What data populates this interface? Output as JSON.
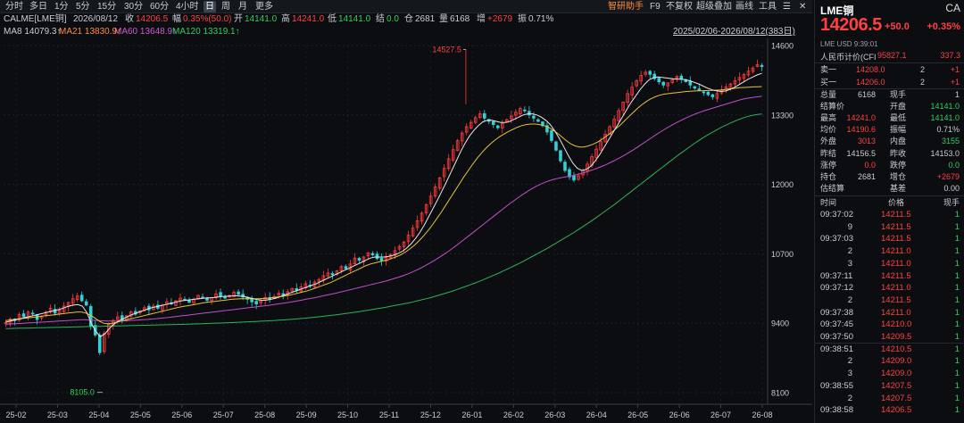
{
  "toolbar": {
    "left_items": [
      "分时",
      "多日",
      "1分",
      "5分",
      "15分",
      "30分",
      "60分",
      "4小时",
      "日",
      "周",
      "月",
      "更多"
    ],
    "active": "日",
    "right_items": [
      "智研助手",
      "F9",
      "不复权",
      "超级叠加",
      "画线",
      "工具"
    ]
  },
  "info": {
    "symbol": "CALME[LME铜]",
    "date": "2026/08/12",
    "close_label": "收",
    "close": "14206.5",
    "amp_label": "幅",
    "amp": "0.35%(50.0)",
    "open_label": "开",
    "open": "14141.0",
    "high_label": "高",
    "high": "14241.0",
    "low_label": "低",
    "low": "14141.0",
    "settle_label": "结",
    "settle": "0.0",
    "oi_label": "仓",
    "oi": "2681",
    "vol_label": "量",
    "vol": "6168",
    "inc_label": "增",
    "inc": "+2679",
    "swing_label": "振",
    "swing": "0.71%",
    "ma8": "MA8 14079.3↑",
    "ma21": "MA21 13830.9↑",
    "ma60": "MA60 13648.9↑",
    "ma120": "MA120 13319.1↑",
    "range": "2025/02/06-2026/08/12(383日)"
  },
  "chart_data": {
    "type": "candlestick",
    "y_ticks": [
      14600,
      13300,
      12000,
      10700,
      9400,
      8100
    ],
    "ylim": [
      8100,
      14600
    ],
    "x_ticks": [
      "25-02",
      "25-03",
      "25-04",
      "25-05",
      "25-06",
      "25-07",
      "25-08",
      "25-09",
      "25-10",
      "25-11",
      "25-12",
      "26-01",
      "26-02",
      "26-03",
      "26-04",
      "26-05",
      "26-06",
      "26-07",
      "26-08"
    ],
    "annotations": [
      {
        "text": "14527.5",
        "value": 14527.5,
        "x_label": "26-01"
      },
      {
        "text": "8105.0",
        "value": 8105.0,
        "x_label": "25-04"
      }
    ],
    "closes": [
      9410,
      9480,
      9450,
      9560,
      9520,
      9610,
      9580,
      9470,
      9530,
      9610,
      9680,
      9590,
      9640,
      9720,
      9790,
      9860,
      9910,
      9820,
      9740,
      9350,
      9180,
      8850,
      9210,
      9380,
      9450,
      9520,
      9460,
      9540,
      9610,
      9570,
      9630,
      9690,
      9650,
      9720,
      9680,
      9740,
      9800,
      9760,
      9820,
      9870,
      9840,
      9790,
      9850,
      9920,
      9880,
      9830,
      9880,
      9950,
      9910,
      9870,
      9920,
      9980,
      9940,
      9890,
      9850,
      9800,
      9760,
      9820,
      9880,
      9850,
      9900,
      9960,
      9930,
      9990,
      10050,
      10020,
      10080,
      10140,
      10110,
      10170,
      10220,
      10290,
      10340,
      10310,
      10380,
      10460,
      10420,
      10510,
      10620,
      10580,
      10640,
      10720,
      10680,
      10610,
      10570,
      10630,
      10690,
      10760,
      10840,
      10920,
      11050,
      11180,
      11320,
      11460,
      11620,
      11780,
      11950,
      12120,
      12300,
      12480,
      12650,
      12820,
      12960,
      13080,
      13160,
      13250,
      13320,
      13240,
      13180,
      13120,
      13060,
      13140,
      13210,
      13280,
      13350,
      13420,
      13380,
      13300,
      13240,
      13180,
      13100,
      12980,
      12820,
      12640,
      12440,
      12260,
      12140,
      12080,
      12160,
      12260,
      12380,
      12520,
      12660,
      12800,
      12940,
      13080,
      13220,
      13380,
      13540,
      13700,
      13820,
      13940,
      14040,
      14100,
      14060,
      13980,
      13920,
      13860,
      13900,
      13960,
      14020,
      13980,
      13920,
      13860,
      13800,
      13760,
      13720,
      13680,
      13640,
      13700,
      13760,
      13820,
      13880,
      13940,
      14000,
      14060,
      14120,
      14180,
      14240,
      14206.5
    ],
    "ma8": [
      9420,
      9440,
      9460,
      9480,
      9500,
      9520,
      9540,
      9560,
      9580,
      9600,
      9620,
      9640,
      9660,
      9690,
      9720,
      9740,
      9750,
      9720,
      9600,
      9400,
      9250,
      9150,
      9200,
      9300,
      9380,
      9440,
      9480,
      9520,
      9560,
      9590,
      9620,
      9650,
      9680,
      9700,
      9720,
      9740,
      9760,
      9780,
      9800,
      9820,
      9830,
      9840,
      9850,
      9860,
      9870,
      9875,
      9880,
      9890,
      9900,
      9905,
      9910,
      9915,
      9910,
      9900,
      9880,
      9860,
      9840,
      9830,
      9835,
      9850,
      9870,
      9900,
      9930,
      9960,
      9990,
      10020,
      10050,
      10080,
      10110,
      10140,
      10180,
      10220,
      10260,
      10300,
      10340,
      10380,
      10420,
      10460,
      10500,
      10540,
      10580,
      10620,
      10640,
      10640,
      10640,
      10650,
      10670,
      10700,
      10740,
      10800,
      10880,
      10980,
      11100,
      11240,
      11400,
      11560,
      11720,
      11890,
      12060,
      12240,
      12420,
      12600,
      12760,
      12900,
      13010,
      13100,
      13170,
      13200,
      13200,
      13180,
      13160,
      13160,
      13180,
      13220,
      13260,
      13300,
      13320,
      13320,
      13300,
      13260,
      13200,
      13120,
      13000,
      12860,
      12700,
      12540,
      12400,
      12300,
      12260,
      12280,
      12340,
      12440,
      12560,
      12700,
      12840,
      12980,
      13120,
      13260,
      13400,
      13540,
      13660,
      13780,
      13880,
      13960,
      14000,
      14010,
      14000,
      13990,
      13980,
      13970,
      13970,
      13960,
      13940,
      13910,
      13880,
      13840,
      13800,
      13770,
      13750,
      13740,
      13750,
      13780,
      13820,
      13870,
      13920,
      13970,
      14010,
      14050,
      14079.3
    ],
    "ma21": [
      9450,
      9460,
      9470,
      9480,
      9490,
      9500,
      9510,
      9520,
      9530,
      9540,
      9550,
      9560,
      9570,
      9580,
      9590,
      9600,
      9610,
      9610,
      9590,
      9550,
      9500,
      9440,
      9400,
      9390,
      9400,
      9420,
      9440,
      9460,
      9480,
      9500,
      9520,
      9540,
      9560,
      9580,
      9600,
      9620,
      9640,
      9660,
      9680,
      9700,
      9715,
      9730,
      9745,
      9760,
      9775,
      9790,
      9800,
      9810,
      9820,
      9830,
      9840,
      9850,
      9855,
      9860,
      9860,
      9860,
      9860,
      9860,
      9865,
      9870,
      9880,
      9890,
      9900,
      9915,
      9930,
      9950,
      9970,
      9990,
      10010,
      10040,
      10070,
      10100,
      10130,
      10160,
      10200,
      10240,
      10280,
      10320,
      10360,
      10400,
      10440,
      10480,
      10510,
      10530,
      10550,
      10570,
      10590,
      10620,
      10650,
      10690,
      10740,
      10800,
      10870,
      10950,
      11040,
      11140,
      11250,
      11370,
      11490,
      11620,
      11750,
      11880,
      12010,
      12140,
      12260,
      12380,
      12490,
      12590,
      12680,
      12760,
      12830,
      12890,
      12940,
      12990,
      13030,
      13070,
      13100,
      13120,
      13130,
      13130,
      13120,
      13100,
      13070,
      13020,
      12960,
      12890,
      12820,
      12760,
      12720,
      12700,
      12700,
      12720,
      12750,
      12790,
      12840,
      12900,
      12960,
      13030,
      13100,
      13180,
      13260,
      13340,
      13420,
      13490,
      13550,
      13600,
      13640,
      13670,
      13690,
      13700,
      13710,
      13720,
      13730,
      13740,
      13745,
      13750,
      13752,
      13755,
      13758,
      13760,
      13765,
      13770,
      13780,
      13790,
      13800,
      13810,
      13815,
      13820,
      13825,
      13828,
      13830.9
    ],
    "ma60": [
      9380,
      9385,
      9390,
      9395,
      9400,
      9405,
      9410,
      9415,
      9420,
      9425,
      9430,
      9435,
      9440,
      9445,
      9450,
      9455,
      9460,
      9465,
      9465,
      9460,
      9455,
      9450,
      9445,
      9442,
      9440,
      9440,
      9442,
      9445,
      9450,
      9455,
      9460,
      9465,
      9470,
      9478,
      9486,
      9494,
      9502,
      9510,
      9520,
      9530,
      9540,
      9550,
      9560,
      9570,
      9580,
      9590,
      9600,
      9610,
      9620,
      9630,
      9640,
      9650,
      9660,
      9670,
      9680,
      9690,
      9700,
      9710,
      9720,
      9730,
      9742,
      9754,
      9766,
      9778,
      9790,
      9805,
      9820,
      9835,
      9850,
      9865,
      9880,
      9898,
      9916,
      9934,
      9952,
      9970,
      9990,
      10010,
      10030,
      10050,
      10070,
      10090,
      10110,
      10130,
      10150,
      10170,
      10190,
      10215,
      10240,
      10265,
      10295,
      10325,
      10360,
      10400,
      10440,
      10485,
      10530,
      10580,
      10630,
      10685,
      10740,
      10800,
      10860,
      10925,
      10990,
      11055,
      11120,
      11185,
      11250,
      11315,
      11380,
      11445,
      11510,
      11575,
      11640,
      11700,
      11760,
      11815,
      11870,
      11920,
      11965,
      12005,
      12040,
      12070,
      12095,
      12115,
      12130,
      12145,
      12160,
      12180,
      12200,
      12225,
      12250,
      12280,
      12310,
      12345,
      12380,
      12420,
      12460,
      12505,
      12550,
      12600,
      12650,
      12705,
      12760,
      12815,
      12870,
      12925,
      12980,
      13030,
      13080,
      13125,
      13170,
      13210,
      13250,
      13285,
      13320,
      13350,
      13380,
      13405,
      13430,
      13455,
      13480,
      13505,
      13530,
      13555,
      13580,
      13600,
      13615,
      13630,
      13640,
      13648.9
    ],
    "ma120": [
      9300,
      9302,
      9304,
      9306,
      9308,
      9310,
      9312,
      9314,
      9316,
      9318,
      9320,
      9322,
      9324,
      9326,
      9328,
      9330,
      9332,
      9334,
      9336,
      9338,
      9340,
      9342,
      9344,
      9346,
      9348,
      9350,
      9352,
      9354,
      9356,
      9358,
      9360,
      9362,
      9364,
      9366,
      9368,
      9370,
      9372,
      9374,
      9376,
      9378,
      9380,
      9383,
      9386,
      9389,
      9392,
      9395,
      9398,
      9401,
      9404,
      9407,
      9410,
      9414,
      9418,
      9422,
      9426,
      9430,
      9434,
      9438,
      9442,
      9446,
      9450,
      9456,
      9462,
      9468,
      9474,
      9480,
      9488,
      9496,
      9504,
      9512,
      9520,
      9530,
      9540,
      9550,
      9560,
      9570,
      9582,
      9594,
      9606,
      9618,
      9630,
      9644,
      9658,
      9672,
      9686,
      9700,
      9716,
      9732,
      9748,
      9764,
      9780,
      9800,
      9820,
      9840,
      9860,
      9880,
      9905,
      9930,
      9955,
      9980,
      10005,
      10035,
      10065,
      10095,
      10125,
      10155,
      10190,
      10225,
      10260,
      10295,
      10330,
      10370,
      10410,
      10450,
      10490,
      10530,
      10575,
      10620,
      10665,
      10710,
      10755,
      10800,
      10850,
      10900,
      10950,
      11000,
      11050,
      11100,
      11155,
      11210,
      11265,
      11320,
      11380,
      11440,
      11500,
      11560,
      11620,
      11685,
      11750,
      11815,
      11880,
      11945,
      12010,
      12075,
      12140,
      12205,
      12270,
      12335,
      12400,
      12465,
      12530,
      12590,
      12650,
      12710,
      12770,
      12825,
      12880,
      12930,
      12980,
      13025,
      13070,
      13110,
      13150,
      13185,
      13220,
      13250,
      13275,
      13295,
      13310,
      13319.1
    ]
  },
  "panel": {
    "name": "LME铜",
    "code": "CA",
    "price": "14206.5",
    "change": "+50.0",
    "pct": "+0.35%",
    "meta": "LME  USD  9:39:01",
    "rmb_label": "人民币计价(CFI",
    "rmb_value": "95827.1",
    "rmb_change": "337.3",
    "orderbook": [
      {
        "label": "卖一",
        "price": "14208.0",
        "qty": "2",
        "chg": "+1"
      },
      {
        "label": "买一",
        "price": "14206.0",
        "qty": "2",
        "chg": "+1"
      }
    ],
    "stats": [
      {
        "l1": "总量",
        "v1": "6168",
        "c1": "w",
        "l2": "现手",
        "v2": "1",
        "c2": "w"
      },
      {
        "l1": "结算价",
        "v1": "",
        "c1": "w",
        "l2": "开盘",
        "v2": "14141.0",
        "c2": "g"
      },
      {
        "l1": "最高",
        "v1": "14241.0",
        "c1": "r",
        "l2": "最低",
        "v2": "14141.0",
        "c2": "g"
      },
      {
        "l1": "均价",
        "v1": "14190.6",
        "c1": "r",
        "l2": "振幅",
        "v2": "0.71%",
        "c2": "w"
      },
      {
        "l1": "外盘",
        "v1": "3013",
        "c1": "r",
        "l2": "内盘",
        "v2": "3155",
        "c2": "g"
      },
      {
        "l1": "昨结",
        "v1": "14156.5",
        "c1": "w",
        "l2": "昨收",
        "v2": "14153.0",
        "c2": "w"
      },
      {
        "l1": "涨停",
        "v1": "0.0",
        "c1": "r",
        "l2": "跌停",
        "v2": "0.0",
        "c2": "g"
      },
      {
        "l1": "持仓",
        "v1": "2681",
        "c1": "w",
        "l2": "增仓",
        "v2": "+2679",
        "c2": "r"
      },
      {
        "l1": "估结算",
        "v1": "",
        "c1": "w",
        "l2": "基差",
        "v2": "0.00",
        "c2": "w"
      }
    ],
    "ticks_head": {
      "time": "时间",
      "price": "价格",
      "qty": "现手"
    },
    "ticks": [
      {
        "t": "09:37:02",
        "p": "14211.5",
        "q": "1"
      },
      {
        "t": "9",
        "p": "14211.5",
        "q": "1"
      },
      {
        "t": "09:37:03",
        "p": "14211.5",
        "q": "1"
      },
      {
        "t": "2",
        "p": "14211.0",
        "q": "1"
      },
      {
        "t": "3",
        "p": "14211.0",
        "q": "1"
      },
      {
        "t": "09:37:11",
        "p": "14211.5",
        "q": "1"
      },
      {
        "t": "09:37:12",
        "p": "14211.0",
        "q": "1"
      },
      {
        "t": "2",
        "p": "14211.5",
        "q": "1"
      },
      {
        "t": "09:37:38",
        "p": "14211.0",
        "q": "1"
      },
      {
        "t": "09:37:45",
        "p": "14210.0",
        "q": "1"
      },
      {
        "t": "09:37:50",
        "p": "14209.5",
        "q": "1"
      },
      {
        "t": "09:38:51",
        "p": "14210.5",
        "q": "1"
      },
      {
        "t": "2",
        "p": "14209.0",
        "q": "1"
      },
      {
        "t": "3",
        "p": "14209.0",
        "q": "1"
      },
      {
        "t": "09:38:55",
        "p": "14207.5",
        "q": "1"
      },
      {
        "t": "2",
        "p": "14207.5",
        "q": "1"
      },
      {
        "t": "09:38:58",
        "p": "14206.5",
        "q": "1"
      }
    ]
  }
}
